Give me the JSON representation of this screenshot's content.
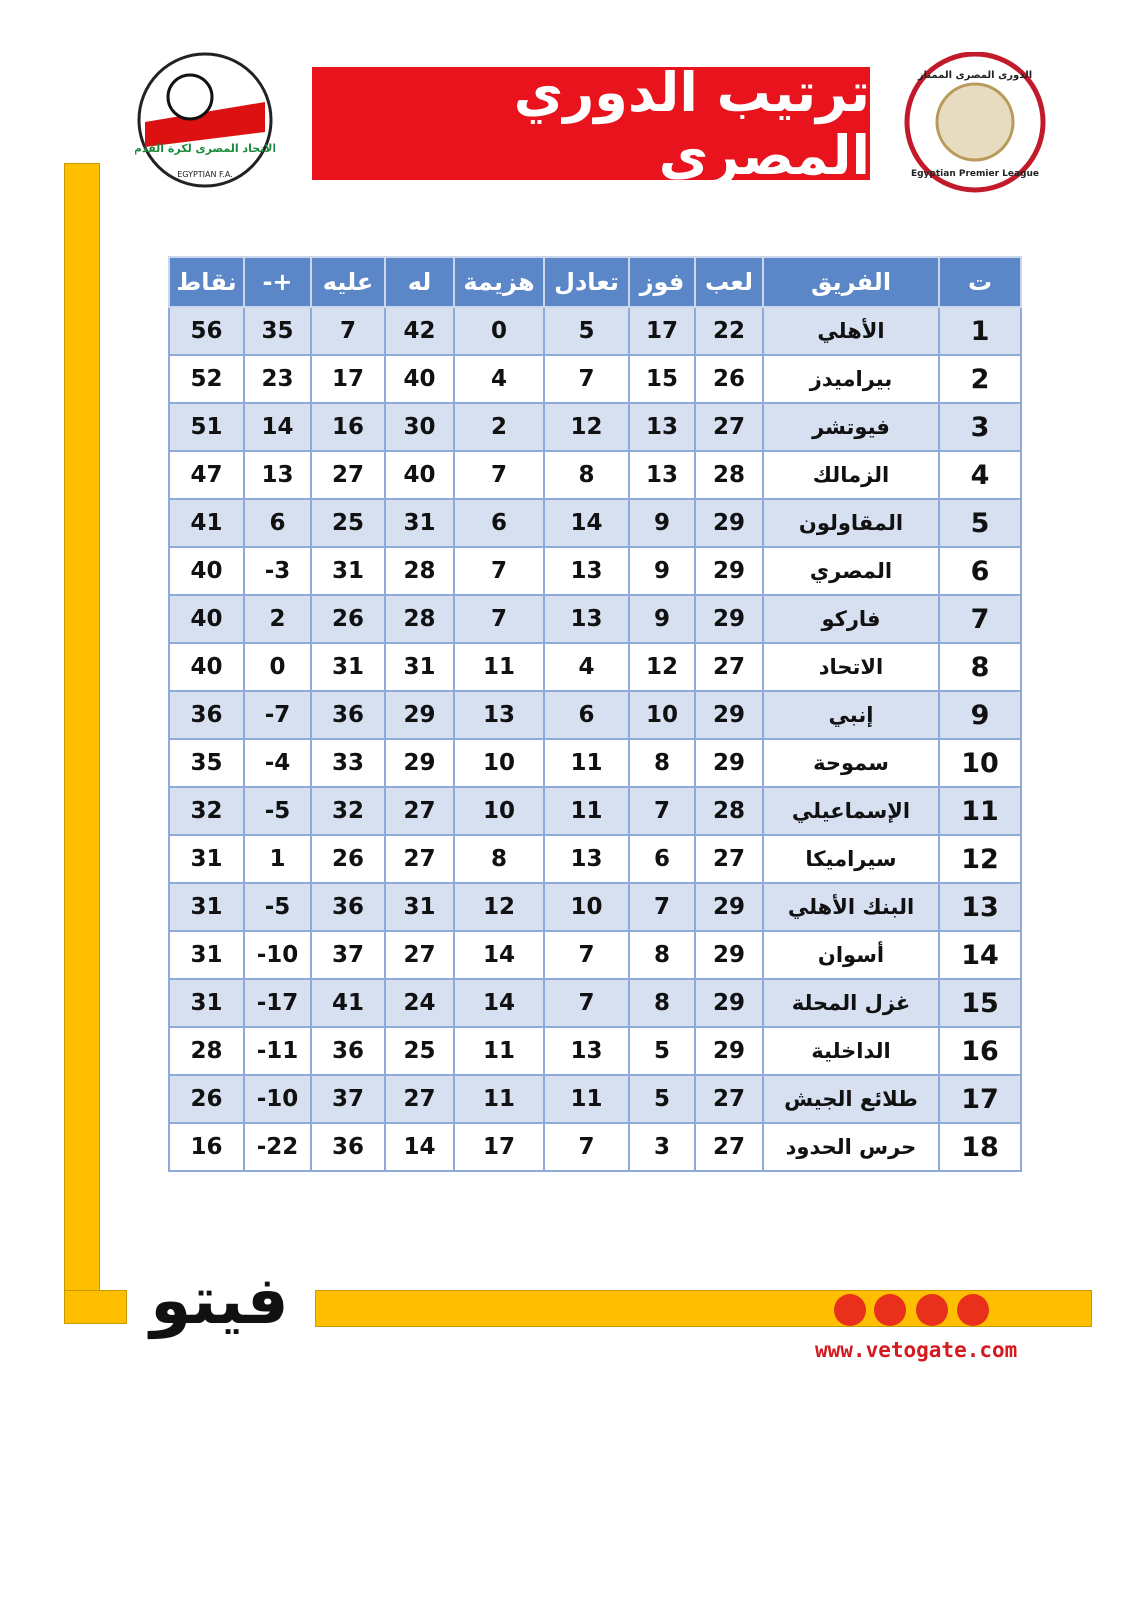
{
  "header": {
    "title": "ترتيب الدوري المصري",
    "left_logo": {
      "arabic": "الاتحاد المصرى لكرة القدم",
      "english": "EGYPTIAN F.A."
    },
    "right_logo": {
      "arabic": "الدورى المصرى الممتاز",
      "english": "Egyptian Premier League"
    }
  },
  "table": {
    "columns": [
      "ت",
      "الفريق",
      "لعب",
      "فوز",
      "تعادل",
      "هزيمة",
      "له",
      "عليه",
      "+-",
      "نقاط"
    ],
    "rows": [
      [
        1,
        "الأهلي",
        22,
        17,
        5,
        0,
        42,
        7,
        35,
        56
      ],
      [
        2,
        "بيراميدز",
        26,
        15,
        7,
        4,
        40,
        17,
        23,
        52
      ],
      [
        3,
        "فيوتشر",
        27,
        13,
        12,
        2,
        30,
        16,
        14,
        51
      ],
      [
        4,
        "الزمالك",
        28,
        13,
        8,
        7,
        40,
        27,
        13,
        47
      ],
      [
        5,
        "المقاولون",
        29,
        9,
        14,
        6,
        31,
        25,
        6,
        41
      ],
      [
        6,
        "المصري",
        29,
        9,
        13,
        7,
        28,
        31,
        -3,
        40
      ],
      [
        7,
        "فاركو",
        29,
        9,
        13,
        7,
        28,
        26,
        2,
        40
      ],
      [
        8,
        "الاتحاد",
        27,
        12,
        4,
        11,
        31,
        31,
        0,
        40
      ],
      [
        9,
        "إنبي",
        29,
        10,
        6,
        13,
        29,
        36,
        -7,
        36
      ],
      [
        10,
        "سموحة",
        29,
        8,
        11,
        10,
        29,
        33,
        -4,
        35
      ],
      [
        11,
        "الإسماعيلي",
        28,
        7,
        11,
        10,
        27,
        32,
        -5,
        32
      ],
      [
        12,
        "سيراميكا",
        27,
        6,
        13,
        8,
        27,
        26,
        1,
        31
      ],
      [
        13,
        "البنك الأهلي",
        29,
        7,
        10,
        12,
        31,
        36,
        -5,
        31
      ],
      [
        14,
        "أسوان",
        29,
        8,
        7,
        14,
        27,
        37,
        -10,
        31
      ],
      [
        15,
        "غزل المحلة",
        29,
        8,
        7,
        14,
        24,
        41,
        -17,
        31
      ],
      [
        16,
        "الداخلية",
        29,
        5,
        13,
        11,
        25,
        36,
        -11,
        28
      ],
      [
        17,
        "طلائع الجيش",
        27,
        5,
        11,
        11,
        27,
        37,
        -10,
        26
      ],
      [
        18,
        "حرس الحدود",
        27,
        3,
        7,
        17,
        14,
        36,
        -22,
        16
      ]
    ]
  },
  "footer": {
    "brand": "فيتو",
    "url": "www.vetogate.com"
  }
}
